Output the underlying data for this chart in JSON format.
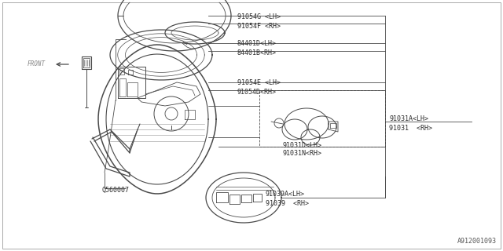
{
  "bg_color": "#ffffff",
  "line_color": "#4a4a4a",
  "text_color": "#2a2a2a",
  "watermark": "A912001093",
  "font_size": 6.0,
  "font_family": "monospace",
  "labels": {
    "Q560007": [
      0.155,
      0.805
    ],
    "91039_RH": "91039  <RH>",
    "91039_LH": "91039A<LH>",
    "91031N_RH": "91031N<RH>",
    "91031D_LH": "91031D<LH>",
    "91031_RH": "91031  <RH>",
    "91031A_LH": "91031A<LH>",
    "91054D_RH": "91054D<RH>",
    "91054E_LH": "91054E <LH>",
    "84401B_RH": "84401B<RH>",
    "84401D_LH": "84401D<LH>",
    "91054F_RH": "91054F <RH>",
    "91054G_LH": "91054G <LH>"
  }
}
